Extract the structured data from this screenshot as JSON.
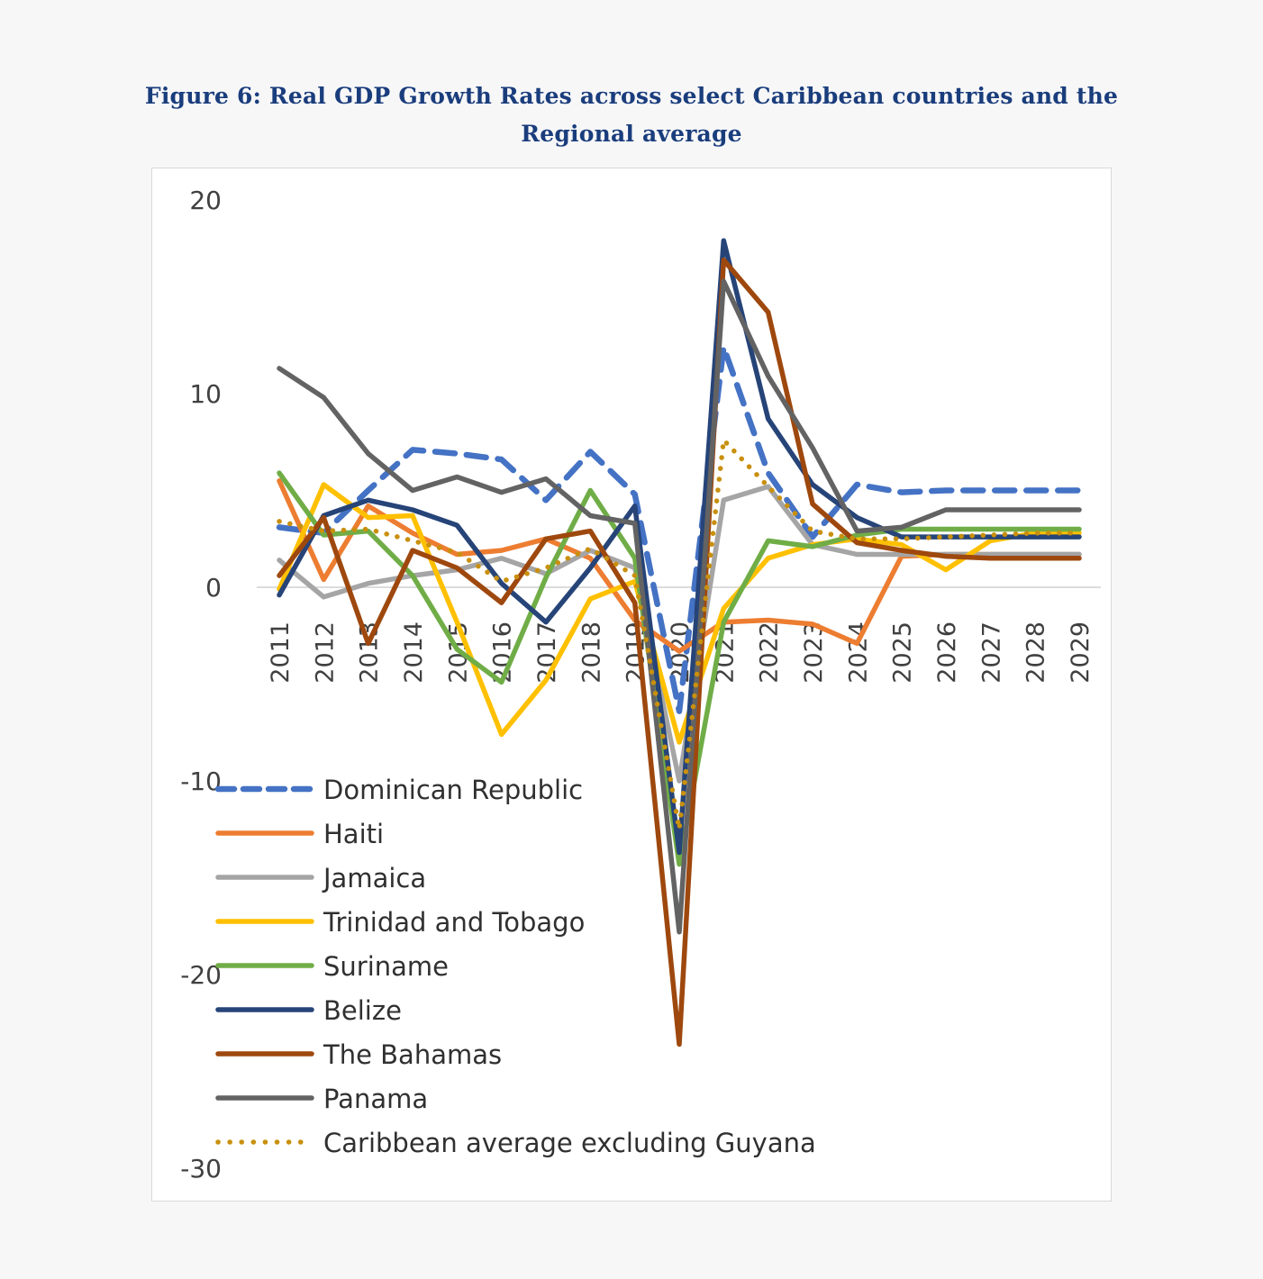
{
  "chart_data": {
    "type": "line",
    "title": "Figure 6: Real GDP Growth Rates across select Caribbean countries and the Regional average",
    "title_lines": [
      "Figure 6: Real GDP Growth Rates across select Caribbean countries and the",
      "Regional average"
    ],
    "xlabel": "",
    "ylabel": "",
    "ylim": [
      -30,
      20
    ],
    "yticks": [
      20,
      10,
      0,
      -10,
      -20,
      -30
    ],
    "ytick_labels": [
      "20",
      "10",
      "0",
      "-10",
      "-20",
      "-30"
    ],
    "grid": false,
    "legend_position": "bottom-left",
    "x": [
      "2011",
      "2012",
      "2013",
      "2014",
      "2015",
      "2016",
      "2017",
      "2018",
      "2019",
      "2020",
      "2021",
      "2022",
      "2023",
      "2024",
      "2025",
      "2026",
      "2027",
      "2028",
      "2029"
    ],
    "series": [
      {
        "name": "Dominican Republic",
        "color": "#4472c4",
        "style": "dashed",
        "values": [
          3.1,
          2.8,
          5.0,
          7.1,
          6.9,
          6.6,
          4.5,
          7.0,
          4.8,
          -6.4,
          12.4,
          5.9,
          2.6,
          5.3,
          4.9,
          5.0,
          5.0,
          5.0,
          5.0
        ]
      },
      {
        "name": "Haiti",
        "color": "#ed7d31",
        "style": "solid",
        "values": [
          5.5,
          0.4,
          4.2,
          2.8,
          1.7,
          1.9,
          2.5,
          1.5,
          -1.7,
          -3.3,
          -1.8,
          -1.7,
          -1.9,
          -2.9,
          1.6,
          1.7,
          1.7,
          1.7,
          1.7
        ]
      },
      {
        "name": "Jamaica",
        "color": "#a5a5a5",
        "style": "solid",
        "values": [
          1.4,
          -0.5,
          0.2,
          0.6,
          0.9,
          1.5,
          0.7,
          1.9,
          1.0,
          -10.0,
          4.5,
          5.2,
          2.2,
          1.7,
          1.7,
          1.7,
          1.7,
          1.7,
          1.7
        ]
      },
      {
        "name": "Trinidad and Tobago",
        "color": "#ffc000",
        "style": "solid",
        "values": [
          -0.1,
          5.3,
          3.6,
          3.7,
          -1.8,
          -7.6,
          -4.8,
          -0.6,
          0.3,
          -8.0,
          -1.1,
          1.5,
          2.2,
          2.5,
          2.2,
          0.9,
          2.4,
          2.8,
          2.8
        ]
      },
      {
        "name": "Suriname",
        "color": "#70ad47",
        "style": "solid",
        "values": [
          5.9,
          2.7,
          2.9,
          0.6,
          -3.2,
          -4.9,
          0.5,
          5.0,
          1.5,
          -14.3,
          -1.8,
          2.4,
          2.1,
          2.7,
          3.0,
          3.0,
          3.0,
          3.0,
          3.0
        ]
      },
      {
        "name": "Belize",
        "color": "#264478",
        "style": "solid",
        "values": [
          -0.4,
          3.7,
          4.5,
          4.0,
          3.2,
          0.2,
          -1.8,
          1.0,
          4.2,
          -13.7,
          17.9,
          8.7,
          5.3,
          3.6,
          2.6,
          2.6,
          2.6,
          2.6,
          2.6
        ]
      },
      {
        "name": "The Bahamas",
        "color": "#9e480e",
        "style": "solid",
        "values": [
          0.6,
          3.6,
          -2.9,
          1.9,
          1.0,
          -0.8,
          2.5,
          2.9,
          -0.8,
          -23.6,
          16.9,
          14.2,
          4.3,
          2.3,
          1.9,
          1.6,
          1.5,
          1.5,
          1.5
        ]
      },
      {
        "name": "Panama",
        "color": "#636363",
        "style": "solid",
        "values": [
          11.3,
          9.8,
          6.9,
          5.0,
          5.7,
          4.9,
          5.6,
          3.7,
          3.3,
          -17.8,
          15.8,
          10.9,
          7.2,
          2.9,
          3.1,
          4.0,
          4.0,
          4.0,
          4.0
        ]
      },
      {
        "name": "Caribbean average excluding Guyana",
        "color": "#c9900e",
        "style": "dotted",
        "values": [
          3.4,
          2.9,
          3.0,
          2.4,
          1.8,
          0.3,
          1.0,
          2.0,
          0.6,
          -12.5,
          7.6,
          5.2,
          2.9,
          2.5,
          2.5,
          2.6,
          2.7,
          2.8,
          2.8
        ]
      }
    ]
  }
}
